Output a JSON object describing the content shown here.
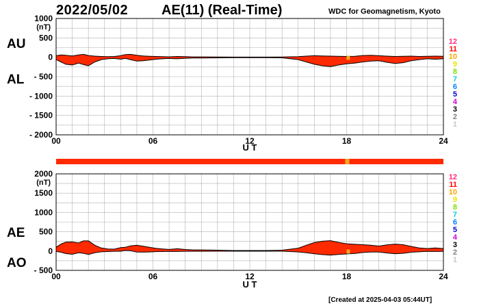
{
  "header": {
    "date": "2022/05/02",
    "title": "AE(11) (Real-Time)",
    "org": "WDC for Geomagnetism, Kyoto"
  },
  "footer": {
    "created": "[Created at 2025-04-03 05:44UT]"
  },
  "colors": {
    "fill": "#ff2a00",
    "grid": "#b0b0b0",
    "outline": "#000000",
    "station_bar": "#ff2a00",
    "station_highlight": "#f5a623"
  },
  "station_counts": [
    {
      "label": "12",
      "color": "#ff2a7f"
    },
    {
      "label": "11",
      "color": "#ff0000"
    },
    {
      "label": "10",
      "color": "#ffa500"
    },
    {
      "label": "9",
      "color": "#e6e600"
    },
    {
      "label": "8",
      "color": "#7ee000"
    },
    {
      "label": "7",
      "color": "#00d0d0"
    },
    {
      "label": "6",
      "color": "#0080ff"
    },
    {
      "label": "5",
      "color": "#0000d0"
    },
    {
      "label": "4",
      "color": "#d000d0"
    },
    {
      "label": "3",
      "color": "#000000"
    },
    {
      "label": "2",
      "color": "#808080"
    },
    {
      "label": "1",
      "color": "#c8c8c8"
    }
  ],
  "chart_data": [
    {
      "type": "area",
      "panel": "AU/AL",
      "top_label": "AU",
      "bottom_label": "AL",
      "unit_label": "(nT)",
      "xlabel": "U T",
      "xlim": [
        0,
        24
      ],
      "ylim": [
        -2000,
        1000
      ],
      "yticks": [
        "1000",
        "500",
        "0",
        "- 500",
        "- 1000",
        "- 1500",
        "- 2000"
      ],
      "ytick_values": [
        1000,
        500,
        0,
        -500,
        -1000,
        -1500,
        -2000
      ],
      "xticks": [
        "00",
        "06",
        "12",
        "18",
        "24"
      ],
      "xtick_values": [
        0,
        6,
        12,
        18,
        24
      ],
      "grid": true,
      "series": [
        {
          "name": "AU",
          "x": [
            0,
            0.3,
            0.6,
            1.0,
            1.4,
            1.7,
            2.0,
            2.4,
            2.8,
            3.2,
            3.6,
            4.0,
            4.3,
            4.6,
            5.0,
            5.4,
            5.8,
            6.2,
            6.6,
            7.0,
            7.5,
            8.0,
            8.5,
            9.0,
            10,
            11,
            12,
            13,
            14,
            15,
            15.5,
            16,
            16.5,
            17,
            17.5,
            18,
            18.5,
            19,
            19.5,
            20,
            20.5,
            21,
            21.5,
            22,
            22.5,
            23,
            23.5,
            24
          ],
          "values": [
            40,
            60,
            50,
            35,
            60,
            75,
            45,
            30,
            20,
            15,
            20,
            40,
            70,
            75,
            50,
            35,
            25,
            20,
            15,
            12,
            20,
            15,
            10,
            10,
            8,
            5,
            5,
            5,
            8,
            15,
            30,
            40,
            35,
            30,
            25,
            20,
            25,
            45,
            50,
            40,
            30,
            20,
            25,
            30,
            20,
            25,
            30,
            25
          ]
        },
        {
          "name": "AL",
          "x": [
            0,
            0.3,
            0.6,
            1.0,
            1.4,
            1.7,
            2.0,
            2.4,
            2.8,
            3.2,
            3.6,
            4.0,
            4.3,
            4.6,
            5.0,
            5.4,
            5.8,
            6.2,
            6.6,
            7.0,
            7.5,
            8.0,
            8.5,
            9.0,
            10,
            11,
            12,
            13,
            14,
            15,
            15.5,
            16,
            16.5,
            17,
            17.5,
            18,
            18.5,
            19,
            19.5,
            20,
            20.5,
            21,
            21.5,
            22,
            22.5,
            23,
            23.5,
            24
          ],
          "values": [
            -60,
            -120,
            -180,
            -200,
            -150,
            -190,
            -220,
            -120,
            -60,
            -40,
            -30,
            -50,
            -30,
            -60,
            -100,
            -90,
            -70,
            -50,
            -40,
            -30,
            -40,
            -25,
            -20,
            -20,
            -15,
            -10,
            -10,
            -10,
            -15,
            -60,
            -120,
            -180,
            -220,
            -240,
            -200,
            -170,
            -150,
            -120,
            -100,
            -90,
            -130,
            -160,
            -140,
            -90,
            -60,
            -40,
            -50,
            -40
          ]
        }
      ]
    },
    {
      "type": "area",
      "panel": "AE/AO",
      "top_label": "AE",
      "bottom_label": "AO",
      "unit_label": "(nT)",
      "xlabel": "U T",
      "xlim": [
        0,
        24
      ],
      "ylim": [
        -500,
        2000
      ],
      "yticks": [
        "2000",
        "1500",
        "1000",
        "500",
        "0",
        "- 500"
      ],
      "ytick_values": [
        2000,
        1500,
        1000,
        500,
        0,
        -500
      ],
      "xticks": [
        "00",
        "06",
        "12",
        "18",
        "24"
      ],
      "xtick_values": [
        0,
        6,
        12,
        18,
        24
      ],
      "grid": true,
      "series": [
        {
          "name": "AE",
          "x": [
            0,
            0.3,
            0.6,
            1.0,
            1.4,
            1.7,
            2.0,
            2.4,
            2.8,
            3.2,
            3.6,
            4.0,
            4.3,
            4.6,
            5.0,
            5.4,
            5.8,
            6.2,
            6.6,
            7.0,
            7.5,
            8.0,
            8.5,
            9.0,
            10,
            11,
            12,
            13,
            14,
            15,
            15.5,
            16,
            16.5,
            17,
            17.5,
            18,
            18.5,
            19,
            19.5,
            20,
            20.5,
            21,
            21.5,
            22,
            22.5,
            23,
            23.5,
            24
          ],
          "values": [
            100,
            180,
            230,
            235,
            210,
            265,
            265,
            150,
            80,
            55,
            50,
            90,
            100,
            135,
            150,
            125,
            95,
            70,
            55,
            42,
            60,
            40,
            30,
            30,
            23,
            15,
            15,
            15,
            23,
            75,
            150,
            220,
            255,
            270,
            225,
            190,
            175,
            165,
            150,
            130,
            160,
            180,
            165,
            120,
            80,
            65,
            80,
            65
          ]
        },
        {
          "name": "AO",
          "x": [
            0,
            0.3,
            0.6,
            1.0,
            1.4,
            1.7,
            2.0,
            2.4,
            2.8,
            3.2,
            3.6,
            4.0,
            4.3,
            4.6,
            5.0,
            5.4,
            5.8,
            6.2,
            6.6,
            7.0,
            7.5,
            8.0,
            8.5,
            9.0,
            10,
            11,
            12,
            13,
            14,
            15,
            15.5,
            16,
            16.5,
            17,
            17.5,
            18,
            18.5,
            19,
            19.5,
            20,
            20.5,
            21,
            21.5,
            22,
            22.5,
            23,
            23.5,
            24
          ],
          "values": [
            -10,
            -30,
            -65,
            -83,
            -45,
            -58,
            -88,
            -45,
            -20,
            -13,
            -5,
            -5,
            20,
            8,
            -25,
            -28,
            -23,
            -15,
            -13,
            -9,
            -10,
            -5,
            -5,
            -5,
            -4,
            -3,
            -3,
            -3,
            -4,
            -23,
            -45,
            -70,
            -93,
            -105,
            -88,
            -75,
            -63,
            -38,
            -25,
            -25,
            -50,
            -70,
            -58,
            -30,
            -20,
            -8,
            -10,
            -8
          ]
        }
      ]
    }
  ]
}
